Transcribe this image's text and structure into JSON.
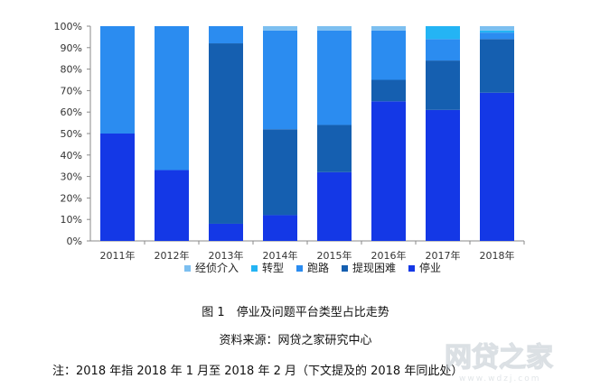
{
  "chart_data": {
    "type": "bar",
    "stacked": true,
    "percent": true,
    "categories": [
      "2011年",
      "2012年",
      "2013年",
      "2014年",
      "2015年",
      "2016年",
      "2017年",
      "2018年"
    ],
    "yticks": [
      "0%",
      "10%",
      "20%",
      "30%",
      "40%",
      "50%",
      "60%",
      "70%",
      "80%",
      "90%",
      "100%"
    ],
    "ylim": [
      0,
      100
    ],
    "series": [
      {
        "name": "停业",
        "color": "#1438e6",
        "values": [
          50,
          33,
          8,
          12,
          32,
          65,
          61,
          69
        ]
      },
      {
        "name": "提现困难",
        "color": "#155fb0",
        "values": [
          0,
          0,
          84,
          40,
          22,
          10,
          23,
          25
        ]
      },
      {
        "name": "跑路",
        "color": "#2b8cf0",
        "values": [
          50,
          67,
          8,
          46,
          44,
          23,
          10,
          3
        ]
      },
      {
        "name": "转型",
        "color": "#24b4f4",
        "values": [
          0,
          0,
          0,
          0,
          0,
          0,
          6,
          1
        ]
      },
      {
        "name": "经侦介入",
        "color": "#7cbff0",
        "values": [
          0,
          0,
          0,
          2,
          2,
          2,
          0,
          2
        ]
      }
    ],
    "legend_order": [
      "经侦介入",
      "转型",
      "跑路",
      "提现困难",
      "停业"
    ],
    "legend_position": "bottom",
    "grid": false
  },
  "figure_caption": "图 1　停业及问题平台类型占比走势",
  "source": "资料来源：网贷之家研究中心",
  "note": "注：2018 年指 2018 年 1 月至 2018 年 2 月（下文提及的 2018 年同此处）",
  "watermark": {
    "text": "网贷之家",
    "sub": "www.wdzj.com"
  }
}
